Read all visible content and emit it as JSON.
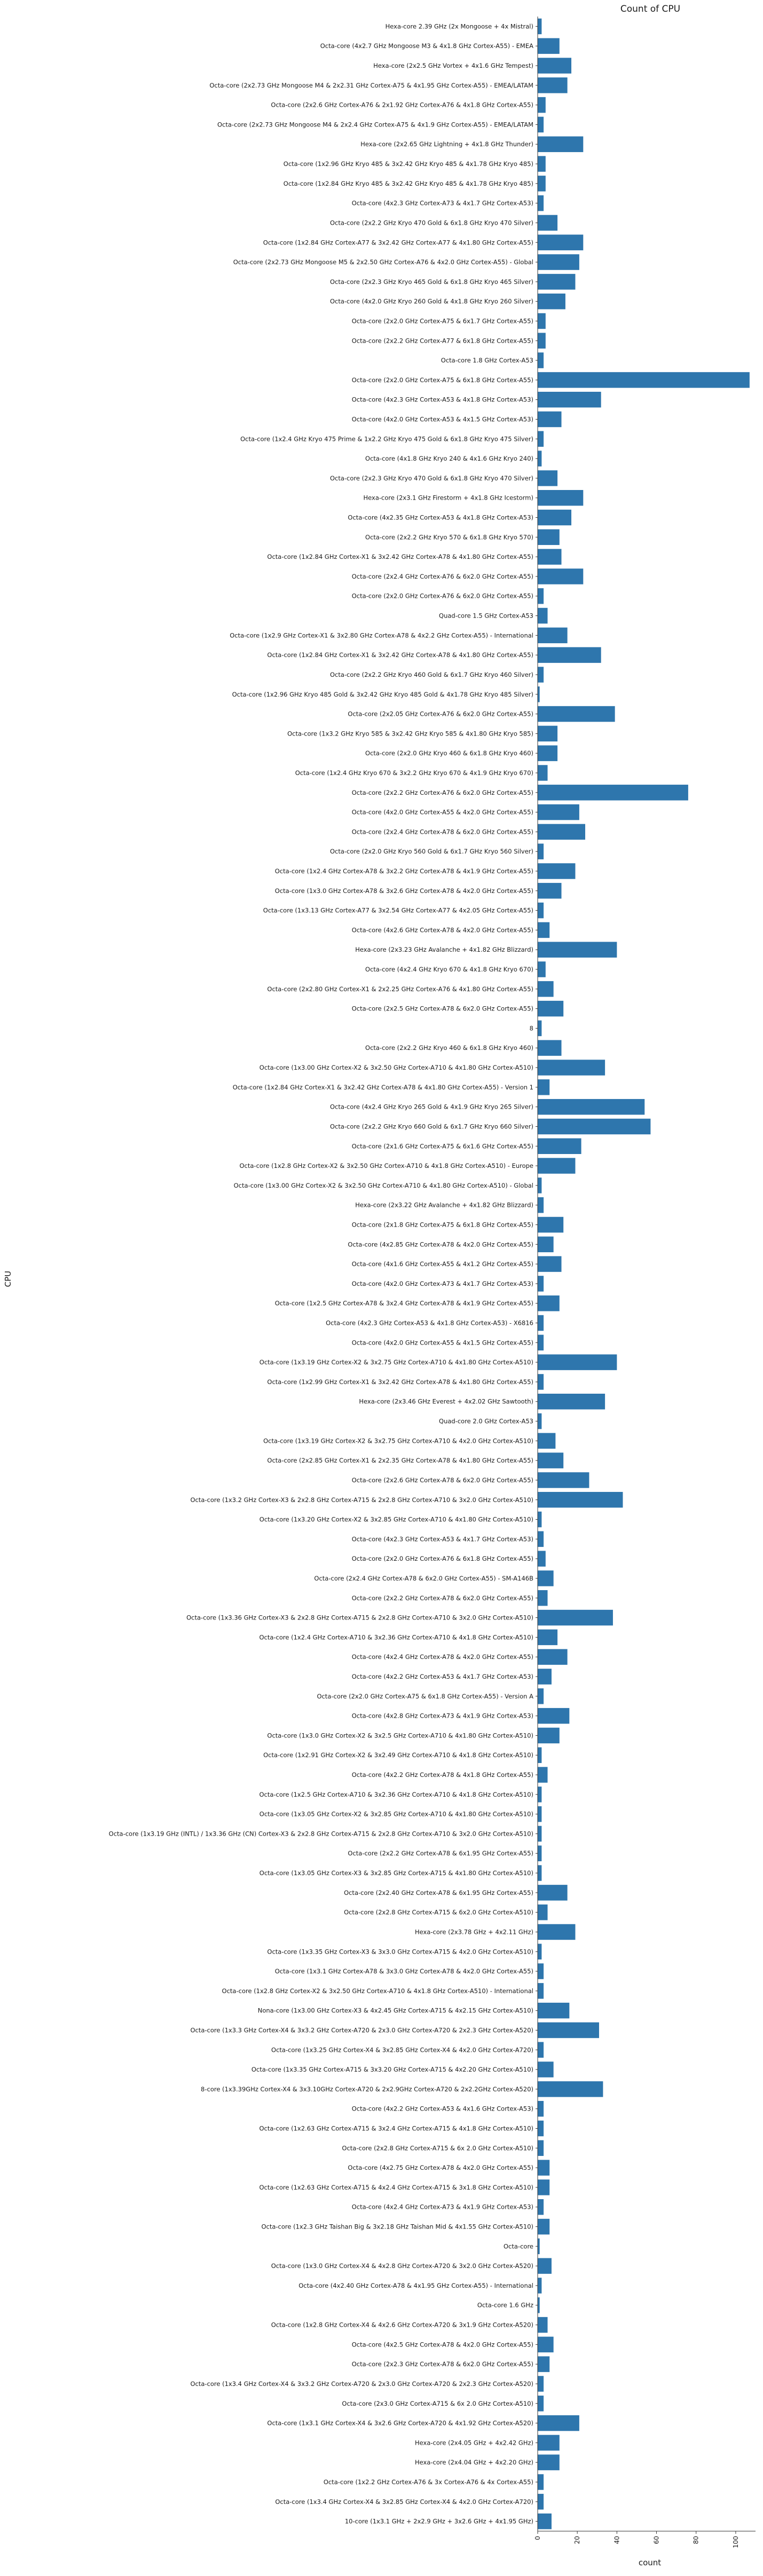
{
  "chart_data": {
    "type": "bar",
    "orientation": "horizontal",
    "title": "Count of CPU",
    "xlabel": "count",
    "ylabel": "CPU",
    "xlim": [
      0,
      110
    ],
    "xticks": [
      0,
      20,
      40,
      60,
      80,
      100
    ],
    "grid": false,
    "bar_color": "#2e76ad",
    "categories": [
      "Hexa-core 2.39 GHz (2x Mongoose + 4x Mistral)",
      "Octa-core (4x2.7 GHz Mongoose M3 & 4x1.8 GHz Cortex-A55) - EMEA",
      "Hexa-core (2x2.5 GHz Vortex + 4x1.6 GHz Tempest)",
      "Octa-core (2x2.73 GHz Mongoose M4 & 2x2.31 GHz Cortex-A75 & 4x1.95 GHz Cortex-A55) - EMEA/LATAM",
      "Octa-core (2x2.6 GHz Cortex-A76 & 2x1.92 GHz Cortex-A76 & 4x1.8 GHz Cortex-A55)",
      "Octa-core (2x2.73 GHz Mongoose M4 & 2x2.4 GHz Cortex-A75 & 4x1.9 GHz Cortex-A55) - EMEA/LATAM",
      "Hexa-core (2x2.65 GHz Lightning + 4x1.8 GHz Thunder)",
      "Octa-core (1x2.96 GHz Kryo 485 & 3x2.42 GHz Kryo 485 & 4x1.78 GHz Kryo 485)",
      "Octa-core (1x2.84 GHz Kryo 485 & 3x2.42 GHz Kryo 485 & 4x1.78 GHz Kryo 485)",
      "Octa-core (4x2.3 GHz Cortex-A73 & 4x1.7 GHz Cortex-A53)",
      "Octa-core (2x2.2 GHz Kryo 470 Gold & 6x1.8 GHz Kryo 470 Silver)",
      "Octa-core (1x2.84 GHz Cortex-A77 & 3x2.42 GHz Cortex-A77 & 4x1.80 GHz Cortex-A55)",
      "Octa-core (2x2.73 GHz Mongoose M5 & 2x2.50 GHz Cortex-A76 & 4x2.0 GHz Cortex-A55) - Global",
      "Octa-core (2x2.3 GHz Kryo 465 Gold & 6x1.8 GHz Kryo 465 Silver)",
      "Octa-core (4x2.0 GHz Kryo 260 Gold & 4x1.8 GHz Kryo 260 Silver)",
      "Octa-core (2x2.0 GHz Cortex-A75 & 6x1.7 GHz Cortex-A55)",
      "Octa-core (2x2.2 GHz Cortex-A77 & 6x1.8 GHz Cortex-A55)",
      "Octa-core 1.8 GHz Cortex-A53",
      "Octa-core (2x2.0 GHz Cortex-A75 & 6x1.8 GHz Cortex-A55)",
      "Octa-core (4x2.3 GHz Cortex-A53 & 4x1.8 GHz Cortex-A53)",
      "Octa-core (4x2.0 GHz Cortex-A53 & 4x1.5 GHz Cortex-A53)",
      "Octa-core (1x2.4 GHz Kryo 475 Prime & 1x2.2 GHz Kryo 475 Gold & 6x1.8 GHz Kryo 475 Silver)",
      "Octa-core (4x1.8 GHz Kryo 240 & 4x1.6 GHz Kryo 240)",
      "Octa-core (2x2.3 GHz Kryo 470 Gold & 6x1.8 GHz Kryo 470 Silver)",
      "Hexa-core (2x3.1 GHz Firestorm + 4x1.8 GHz Icestorm)",
      "Octa-core (4x2.35 GHz Cortex-A53 & 4x1.8 GHz Cortex-A53)",
      "Octa-core (2x2.2 GHz Kryo 570 & 6x1.8 GHz Kryo 570)",
      "Octa-core (1x2.84 GHz Cortex-X1 & 3x2.42 GHz Cortex-A78 & 4x1.80 GHz Cortex-A55)",
      "Octa-core (2x2.4 GHz Cortex-A76 & 6x2.0 GHz Cortex-A55)",
      "Octa-core (2x2.0 GHz Cortex-A76 & 6x2.0 GHz Cortex-A55)",
      "Quad-core 1.5 GHz Cortex-A53",
      "Octa-core (1x2.9 GHz Cortex-X1 & 3x2.80 GHz Cortex-A78 & 4x2.2 GHz Cortex-A55) - International",
      "Octa-core (1x2.84 GHz Cortex-X1 & 3x2.42 GHz Cortex-A78 & 4x1.80 GHz Cortex-A55)",
      "Octa-core (2x2.2 GHz Kryo 460 Gold & 6x1.7 GHz Kryo 460 Silver)",
      "Octa-core (1x2.96 GHz Kryo 485 Gold & 3x2.42 GHz Kryo 485 Gold & 4x1.78 GHz Kryo 485 Silver)",
      "Octa-core (2x2.05 GHz Cortex-A76 & 6x2.0 GHz Cortex-A55)",
      "Octa-core (1x3.2 GHz Kryo 585 & 3x2.42 GHz Kryo 585 & 4x1.80 GHz Kryo 585)",
      "Octa-core (2x2.0 GHz Kryo 460 & 6x1.8 GHz Kryo 460)",
      "Octa-core (1x2.4 GHz Kryo 670 & 3x2.2 GHz Kryo 670 & 4x1.9 GHz Kryo 670)",
      "Octa-core (2x2.2 GHz Cortex-A76 & 6x2.0 GHz Cortex-A55)",
      "Octa-core (4x2.0 GHz Cortex-A55 & 4x2.0 GHz Cortex-A55)",
      "Octa-core (2x2.4 GHz Cortex-A78 & 6x2.0 GHz Cortex-A55)",
      "Octa-core (2x2.0 GHz Kryo 560 Gold & 6x1.7 GHz Kryo 560 Silver)",
      "Octa-core (1x2.4 GHz Cortex-A78 & 3x2.2 GHz Cortex-A78 & 4x1.9 GHz Cortex-A55)",
      "Octa-core (1x3.0 GHz Cortex-A78 & 3x2.6 GHz Cortex-A78 & 4x2.0 GHz Cortex-A55)",
      "Octa-core (1x3.13 GHz Cortex-A77 & 3x2.54 GHz Cortex-A77 & 4x2.05 GHz Cortex-A55)",
      "Octa-core (4x2.6 GHz Cortex-A78 & 4x2.0 GHz Cortex-A55)",
      "Hexa-core (2x3.23 GHz Avalanche + 4x1.82 GHz Blizzard)",
      "Octa-core (4x2.4 GHz Kryo 670 & 4x1.8 GHz Kryo 670)",
      "Octa-core (2x2.80 GHz Cortex-X1 & 2x2.25 GHz Cortex-A76 & 4x1.80 GHz Cortex-A55)",
      "Octa-core (2x2.5 GHz Cortex-A78 & 6x2.0 GHz Cortex-A55)",
      "8",
      "Octa-core (2x2.2 GHz Kryo 460 & 6x1.8 GHz Kryo 460)",
      "Octa-core (1x3.00 GHz Cortex-X2 & 3x2.50 GHz Cortex-A710 & 4x1.80 GHz Cortex-A510)",
      "Octa-core (1x2.84 GHz Cortex-X1 & 3x2.42 GHz Cortex-A78 & 4x1.80 GHz Cortex-A55) - Version 1",
      "Octa-core (4x2.4 GHz Kryo 265 Gold & 4x1.9 GHz Kryo 265 Silver)",
      "Octa-core (2x2.2 GHz Kryo 660 Gold & 6x1.7 GHz Kryo 660 Silver)",
      "Octa-core (2x1.6 GHz Cortex-A75 & 6x1.6 GHz Cortex-A55)",
      "Octa-core (1x2.8 GHz Cortex-X2 & 3x2.50 GHz Cortex-A710 & 4x1.8 GHz Cortex-A510) - Europe",
      "Octa-core (1x3.00 GHz Cortex-X2 & 3x2.50 GHz Cortex-A710 & 4x1.80 GHz Cortex-A510) - Global",
      "Hexa-core (2x3.22 GHz Avalanche + 4x1.82 GHz Blizzard)",
      "Octa-core (2x1.8 GHz Cortex-A75 & 6x1.8 GHz Cortex-A55)",
      "Octa-core (4x2.85 GHz Cortex-A78 & 4x2.0 GHz Cortex-A55)",
      "Octa-core (4x1.6 GHz Cortex-A55 & 4x1.2 GHz Cortex-A55)",
      "Octa-core (4x2.0 GHz Cortex-A73 & 4x1.7 GHz Cortex-A53)",
      "Octa-core (1x2.5 GHz Cortex-A78 & 3x2.4 GHz Cortex-A78 & 4x1.9 GHz Cortex-A55)",
      "Octa-core (4x2.3 GHz Cortex-A53 & 4x1.8 GHz Cortex-A53) - X6816",
      "Octa-core (4x2.0 GHz Cortex-A55 & 4x1.5 GHz Cortex-A55)",
      "Octa-core (1x3.19 GHz Cortex-X2 & 3x2.75 GHz Cortex-A710 & 4x1.80 GHz Cortex-A510)",
      "Octa-core (1x2.99 GHz Cortex-X1 & 3x2.42 GHz Cortex-A78 & 4x1.80 GHz Cortex-A55)",
      "Hexa-core (2x3.46 GHz Everest + 4x2.02 GHz Sawtooth)",
      "Quad-core 2.0 GHz Cortex-A53",
      "Octa-core (1x3.19 GHz Cortex-X2 & 3x2.75 GHz Cortex-A710 & 4x2.0 GHz Cortex-A510)",
      "Octa-core (2x2.85 GHz Cortex-X1 & 2x2.35 GHz Cortex-A78 & 4x1.80 GHz Cortex-A55)",
      "Octa-core (2x2.6 GHz Cortex-A78 & 6x2.0 GHz Cortex-A55)",
      "Octa-core (1x3.2 GHz Cortex-X3 & 2x2.8 GHz Cortex-A715 & 2x2.8 GHz Cortex-A710 & 3x2.0 GHz Cortex-A510)",
      "Octa-core (1x3.20 GHz Cortex-X2 & 3x2.85 GHz Cortex-A710 & 4x1.80 GHz Cortex-A510)",
      "Octa-core (4x2.3 GHz Cortex-A53 & 4x1.7 GHz Cortex-A53)",
      "Octa-core (2x2.0 GHz Cortex-A76 & 6x1.8 GHz Cortex-A55)",
      "Octa-core (2x2.4 GHz Cortex-A78 & 6x2.0 GHz Cortex-A55) - SM-A146B",
      "Octa-core (2x2.2 GHz Cortex-A78 & 6x2.0 GHz Cortex-A55)",
      "Octa-core (1x3.36 GHz Cortex-X3 & 2x2.8 GHz Cortex-A715 & 2x2.8 GHz Cortex-A710 & 3x2.0 GHz Cortex-A510)",
      "Octa-core (1x2.4 GHz Cortex-A710 & 3x2.36 GHz Cortex-A710 & 4x1.8 GHz Cortex-A510)",
      "Octa-core (4x2.4 GHz Cortex-A78 & 4x2.0 GHz Cortex-A55)",
      "Octa-core (4x2.2 GHz Cortex-A53 & 4x1.7 GHz Cortex-A53)",
      "Octa-core (2x2.0 GHz Cortex-A75 & 6x1.8 GHz Cortex-A55) - Version A",
      "Octa-core (4x2.8 GHz Cortex-A73 & 4x1.9 GHz Cortex-A53)",
      "Octa-core (1x3.0 GHz Cortex-X2 & 3x2.5 GHz Cortex-A710 & 4x1.80 GHz Cortex-A510)",
      "Octa-core (1x2.91 GHz Cortex-X2 & 3x2.49 GHz Cortex-A710 & 4x1.8 GHz Cortex-A510)",
      "Octa-core (4x2.2 GHz Cortex-A78 & 4x1.8 GHz Cortex-A55)",
      "Octa-core (1x2.5 GHz Cortex-A710 & 3x2.36 GHz Cortex-A710 & 4x1.8 GHz Cortex-A510)",
      "Octa-core (1x3.05 GHz Cortex-X2 & 3x2.85 GHz Cortex-A710 & 4x1.80 GHz Cortex-A510)",
      "Octa-core (1x3.19 GHz (INTL) / 1x3.36 GHz (CN) Cortex-X3 & 2x2.8 GHz Cortex-A715 & 2x2.8 GHz Cortex-A710 & 3x2.0 GHz Cortex-A510)",
      "Octa-core (2x2.2 GHz Cortex-A78 & 6x1.95 GHz Cortex-A55)",
      "Octa-core (1x3.05 GHz Cortex-X3 & 3x2.85 GHz Cortex-A715 & 4x1.80 GHz Cortex-A510)",
      "Octa-core (2x2.40 GHz Cortex-A78 & 6x1.95 GHz Cortex-A55)",
      "Octa-core (2x2.8 GHz Cortex-A715 & 6x2.0 GHz Cortex-A510)",
      "Hexa-core (2x3.78 GHz + 4x2.11 GHz)",
      "Octa-core (1x3.35 GHz Cortex-X3 & 3x3.0 GHz Cortex-A715 & 4x2.0 GHz Cortex-A510)",
      "Octa-core (1x3.1 GHz Cortex-A78 & 3x3.0 GHz Cortex-A78 & 4x2.0 GHz Cortex-A55)",
      "Octa-core (1x2.8 GHz Cortex-X2 & 3x2.50 GHz Cortex-A710 & 4x1.8 GHz Cortex-A510) - International",
      "Nona-core (1x3.00 GHz Cortex-X3 & 4x2.45 GHz Cortex-A715 & 4x2.15 GHz Cortex-A510)",
      "Octa-core (1x3.3 GHz Cortex-X4 & 3x3.2 GHz Cortex-A720 & 2x3.0 GHz Cortex-A720 & 2x2.3 GHz Cortex-A520)",
      "Octa-core (1x3.25 GHz Cortex-X4 & 3x2.85 GHz Cortex-X4 & 4x2.0 GHz Cortex-A720)",
      "Octa-core (1x3.35 GHz Cortex-A715 & 3x3.20 GHz Cortex-A715 & 4x2.20 GHz Cortex-A510)",
      "8-core (1x3.39GHz Cortex-X4 & 3x3.10GHz Cortex-A720 & 2x2.9GHz Cortex-A720 & 2x2.2GHz Cortex-A520)",
      "Octa-core (4x2.2 GHz Cortex-A53 & 4x1.6 GHz Cortex-A53)",
      "Octa-core (1x2.63 GHz Cortex-A715 & 3x2.4 GHz Cortex-A715 & 4x1.8 GHz Cortex-A510)",
      "Octa-core (2x2.8 GHz Cortex-A715 & 6x 2.0 GHz Cortex-A510)",
      "Octa-core (4x2.75 GHz Cortex-A78 & 4x2.0 GHz Cortex-A55)",
      "Octa-core (1x2.63 GHz Cortex-A715 & 4x2.4 GHz Cortex-A715 & 3x1.8 GHz Cortex-A510)",
      "Octa-core (4x2.4 GHz Cortex-A73 & 4x1.9 GHz Cortex-A53)",
      "Octa-core (1x2.3 GHz Taishan Big & 3x2.18 GHz Taishan Mid & 4x1.55 GHz  Cortex-A510)",
      "Octa-core",
      "Octa-core (1x3.0 GHz Cortex-X4 & 4x2.8 GHz Cortex-A720 & 3x2.0 GHz Cortex-A520)",
      "Octa-core (4x2.40 GHz Cortex-A78 & 4x1.95 GHz Cortex-A55) - International",
      "Octa-core 1.6 GHz",
      "Octa-core (1x2.8 GHz Cortex-X4 & 4x2.6 GHz Cortex-A720 & 3x1.9 GHz Cortex-A520)",
      "Octa-core (4x2.5 GHz Cortex-A78 & 4x2.0 GHz Cortex-A55)",
      "Octa-core (2x2.3 GHz Cortex-A78 & 6x2.0 GHz Cortex-A55)",
      "Octa-core (1x3.4 GHz Cortex-X4 & 3x3.2 GHz Cortex-A720 & 2x3.0 GHz Cortex-A720 & 2x2.3 GHz Cortex-A520)",
      "Octa-core (2x3.0 GHz Cortex-A715 & 6x 2.0 GHz Cortex-A510)",
      "Octa-core (1x3.1 GHz Cortex-X4 & 3x2.6 GHz Cortex-A720 & 4x1.92 GHz Cortex-A520)",
      "Hexa-core (2x4.05 GHz + 4x2.42 GHz)",
      "Hexa-core (2x4.04 GHz + 4x2.20 GHz)",
      "Octa-core (1x2.2 GHz Cortex-A76 & 3x Cortex-A76 & 4x Cortex-A55)",
      "Octa-core (1x3.4 GHz Cortex-X4 & 3x2.85 GHz Cortex-X4 & 4x2.0 GHz Cortex-A720)",
      "10-core (1x3.1 GHz + 2x2.9 GHz + 3x2.6 GHz + 4x1.95 GHz)"
    ],
    "values": [
      2,
      11,
      17,
      15,
      4,
      3,
      23,
      4,
      4,
      3,
      10,
      23,
      21,
      19,
      14,
      4,
      4,
      3,
      107,
      32,
      12,
      3,
      2,
      10,
      23,
      17,
      11,
      12,
      23,
      3,
      5,
      15,
      32,
      3,
      1,
      39,
      10,
      10,
      5,
      76,
      21,
      24,
      3,
      19,
      12,
      3,
      6,
      40,
      4,
      8,
      13,
      2,
      12,
      34,
      6,
      54,
      57,
      22,
      19,
      2,
      3,
      13,
      8,
      12,
      3,
      11,
      3,
      3,
      40,
      3,
      34,
      2,
      9,
      13,
      26,
      43,
      2,
      3,
      4,
      8,
      5,
      38,
      10,
      15,
      7,
      3,
      16,
      11,
      2,
      5,
      2,
      2,
      2,
      2,
      2,
      15,
      5,
      19,
      2,
      3,
      3,
      16,
      31,
      3,
      8,
      33,
      3,
      3,
      3,
      6,
      6,
      3,
      6,
      1,
      7,
      2,
      1,
      5,
      8,
      6,
      3,
      3,
      21,
      11,
      11,
      3,
      3,
      7
    ]
  }
}
